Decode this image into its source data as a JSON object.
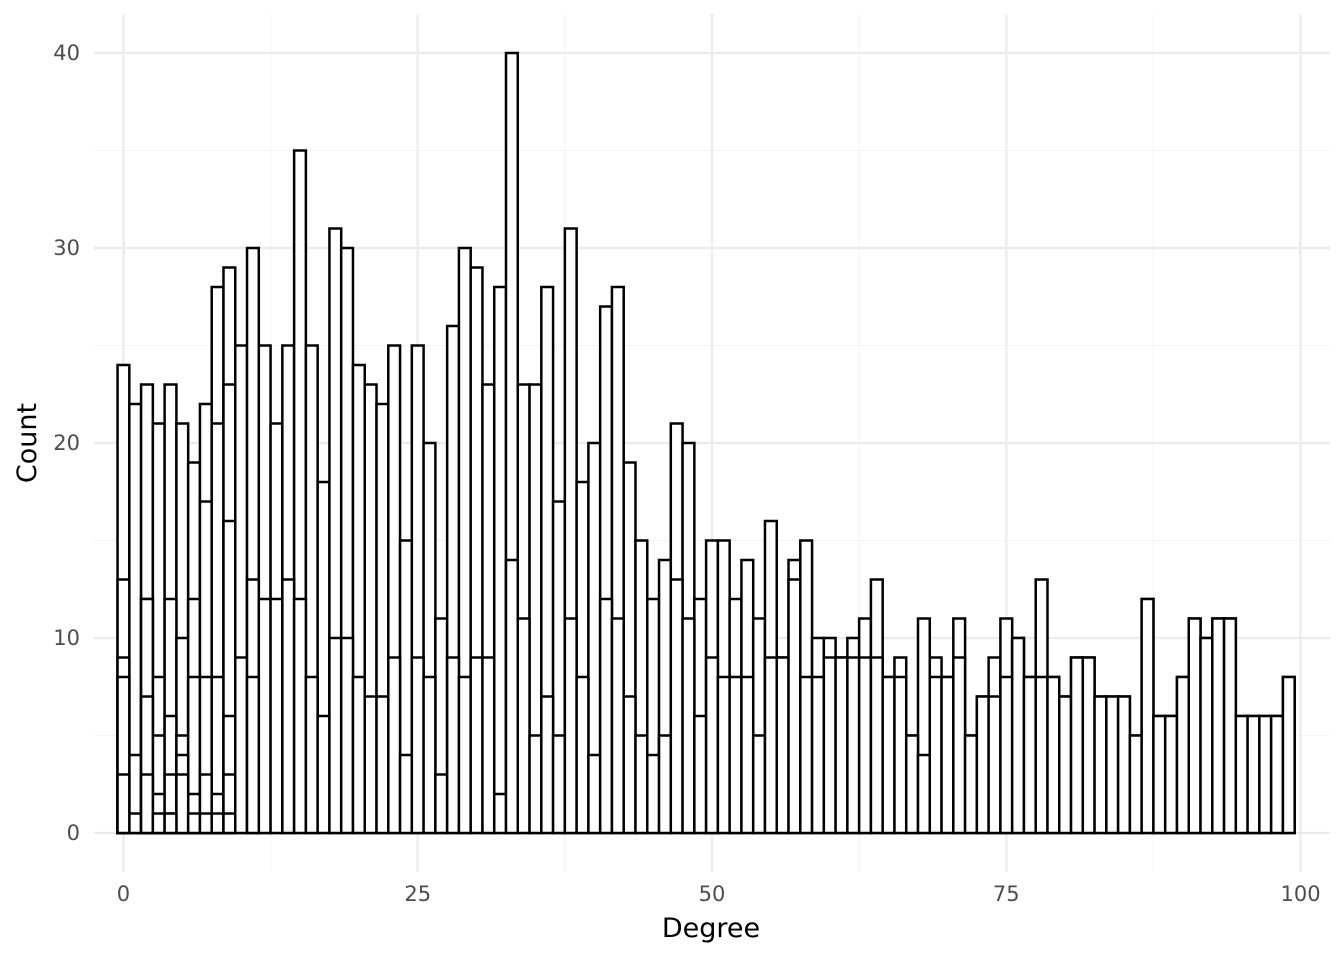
{
  "chart_data": {
    "type": "bar",
    "title": "",
    "xlabel": "Degree",
    "ylabel": "Count",
    "xlim": [
      -2.5,
      102.5
    ],
    "ylim": [
      -2,
      42
    ],
    "x_ticks": [
      0,
      25,
      50,
      75,
      100
    ],
    "y_ticks": [
      0,
      10,
      20,
      30,
      40
    ],
    "grid": true,
    "legend": "none",
    "bar_fill": "#ffffff",
    "bar_stroke": "#000000",
    "bin_width": 1,
    "x": [
      0,
      1,
      2,
      3,
      4,
      5,
      6,
      7,
      8,
      9,
      10,
      11,
      12,
      13,
      14,
      15,
      16,
      17,
      18,
      19,
      20,
      21,
      22,
      23,
      24,
      25,
      26,
      27,
      28,
      29,
      30,
      31,
      32,
      33,
      34,
      35,
      36,
      37,
      38,
      39,
      40,
      41,
      42,
      43,
      44,
      45,
      46,
      47,
      48,
      49,
      50,
      51,
      52,
      53,
      54,
      55,
      56,
      57,
      58,
      59,
      60,
      61,
      62,
      63,
      64,
      65,
      66,
      67,
      68,
      69,
      70,
      71,
      72,
      73,
      74,
      75,
      76,
      77,
      78,
      79,
      80,
      81,
      82,
      83,
      84,
      85,
      86,
      87,
      88,
      89,
      90,
      91,
      92,
      93,
      94,
      95,
      96,
      97,
      98,
      99
    ],
    "series": [
      {
        "values": [
          24,
          22,
          23,
          21,
          23,
          21,
          19,
          22,
          28,
          29,
          25,
          30,
          25,
          21,
          25,
          35,
          25,
          18,
          31,
          30,
          24,
          23,
          22,
          25,
          15,
          25,
          20,
          11,
          26,
          30,
          29,
          23,
          28,
          40,
          23,
          23,
          28,
          17,
          31,
          18,
          20,
          27,
          28,
          19,
          15,
          12,
          14,
          21,
          20,
          12,
          15,
          15,
          12,
          14,
          11,
          16,
          9,
          14,
          15,
          10,
          10,
          9,
          10,
          11,
          13,
          8,
          9,
          5,
          11,
          9,
          8,
          11,
          5,
          7,
          9,
          11,
          10,
          8,
          13,
          8,
          7,
          9,
          9,
          7,
          7,
          7,
          5,
          12,
          6,
          6,
          8,
          11,
          10,
          11,
          11,
          6,
          6,
          6,
          6,
          8
        ]
      },
      {
        "values": [
          13,
          4,
          12,
          8,
          12,
          10,
          12,
          17,
          21,
          23,
          0,
          0,
          0,
          0,
          0,
          0,
          0,
          0,
          0,
          0,
          0,
          0,
          0,
          0,
          0,
          0,
          0,
          0,
          0,
          0,
          0,
          0,
          0,
          0,
          0,
          0,
          0,
          0,
          0,
          0,
          0,
          0,
          0,
          0,
          0,
          0,
          0,
          0,
          0,
          0,
          0,
          0,
          0,
          0,
          0,
          0,
          0,
          0,
          0,
          0,
          0,
          0,
          0,
          0,
          0,
          0,
          0,
          0,
          0,
          0,
          0,
          0,
          0,
          0,
          0,
          0,
          0,
          0,
          0,
          0,
          0,
          0,
          0,
          0,
          0,
          0,
          0,
          0,
          0,
          0,
          0,
          0,
          0,
          0,
          0,
          0,
          0,
          0,
          0,
          0
        ]
      },
      {
        "values": [
          9,
          1,
          12,
          5,
          6,
          5,
          8,
          8,
          8,
          16,
          9,
          13,
          12,
          12,
          13,
          12,
          8,
          6,
          10,
          10,
          8,
          7,
          7,
          9,
          4,
          9,
          8,
          3,
          9,
          8,
          9,
          9,
          2,
          14,
          11,
          5,
          7,
          5,
          11,
          8,
          4,
          12,
          11,
          7,
          5,
          4,
          5,
          13,
          11,
          6,
          9,
          8,
          8,
          8,
          5,
          9,
          9,
          13,
          8,
          8,
          9,
          9,
          9,
          9,
          9,
          8,
          8,
          5,
          4,
          8,
          8,
          9,
          5,
          7,
          7,
          8,
          10,
          8,
          8,
          8,
          7,
          9,
          9,
          7,
          7,
          7,
          5,
          12,
          6,
          6,
          8,
          11,
          10,
          11,
          11,
          6,
          6,
          6,
          6,
          8
        ]
      },
      {
        "values": [
          8,
          0,
          7,
          2,
          3,
          4,
          2,
          3,
          2,
          6,
          0,
          8,
          0,
          0,
          0,
          0,
          0,
          0,
          0,
          0,
          0,
          0,
          0,
          0,
          0,
          0,
          0,
          0,
          0,
          0,
          0,
          0,
          0,
          0,
          0,
          0,
          0,
          0,
          0,
          0,
          0,
          0,
          0,
          0,
          0,
          0,
          0,
          0,
          0,
          0,
          0,
          0,
          0,
          0,
          0,
          0,
          0,
          0,
          0,
          0,
          0,
          0,
          0,
          0,
          0,
          0,
          0,
          0,
          0,
          0,
          0,
          0,
          0,
          0,
          0,
          0,
          0,
          0,
          0,
          0,
          0,
          0,
          0,
          0,
          0,
          0,
          0,
          0,
          0,
          0,
          0,
          0,
          0,
          0,
          0,
          0,
          0,
          0,
          0,
          0
        ]
      },
      {
        "values": [
          3,
          0,
          3,
          1,
          1,
          3,
          1,
          1,
          1,
          3,
          0,
          0,
          0,
          0,
          0,
          0,
          0,
          0,
          0,
          0,
          0,
          0,
          0,
          0,
          0,
          0,
          0,
          0,
          0,
          0,
          0,
          0,
          0,
          0,
          0,
          0,
          0,
          0,
          0,
          0,
          0,
          0,
          0,
          0,
          0,
          0,
          0,
          0,
          0,
          0,
          0,
          0,
          0,
          0,
          0,
          0,
          0,
          0,
          0,
          0,
          0,
          0,
          0,
          0,
          0,
          0,
          0,
          0,
          0,
          0,
          0,
          0,
          0,
          0,
          0,
          0,
          0,
          0,
          0,
          0,
          0,
          0,
          0,
          0,
          0,
          0,
          0,
          0,
          0,
          0,
          0,
          0,
          0,
          0,
          0,
          0,
          0,
          0,
          0,
          0
        ]
      },
      {
        "values": [
          0,
          0,
          0,
          0,
          1,
          0,
          0,
          0,
          0,
          1,
          0,
          0,
          0,
          0,
          0,
          0,
          0,
          0,
          0,
          0,
          0,
          0,
          0,
          0,
          0,
          0,
          0,
          0,
          0,
          0,
          0,
          0,
          0,
          0,
          0,
          0,
          0,
          0,
          0,
          0,
          0,
          0,
          0,
          0,
          0,
          0,
          0,
          0,
          0,
          0,
          0,
          0,
          0,
          0,
          0,
          0,
          0,
          0,
          0,
          0,
          0,
          0,
          0,
          0,
          0,
          0,
          0,
          0,
          0,
          0,
          0,
          0,
          0,
          0,
          0,
          0,
          0,
          0,
          0,
          0,
          0,
          0,
          0,
          0,
          0,
          0,
          0,
          0,
          0,
          0,
          0,
          0,
          0,
          0,
          0,
          0,
          0,
          0,
          0,
          0
        ]
      }
    ]
  }
}
